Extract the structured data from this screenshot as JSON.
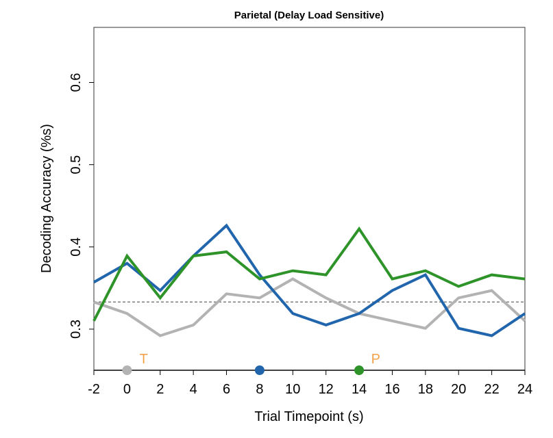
{
  "chart_data": {
    "type": "line",
    "title": "Parietal (Delay Load Sensitive)",
    "xlabel": "Trial Timepoint (s)",
    "ylabel": "Decoding Accuracy (%s)",
    "xlim": [
      -2,
      24
    ],
    "ylim": [
      0.25,
      0.667
    ],
    "x_ticks": [
      "-2",
      "0",
      "2",
      "4",
      "6",
      "8",
      "10",
      "12",
      "14",
      "16",
      "18",
      "20",
      "22",
      "24"
    ],
    "y_ticks": [
      "0.3",
      "0.4",
      "0.5",
      "0.6"
    ],
    "grid": false,
    "legend": "none",
    "chance_level": 0.333,
    "x": [
      -2,
      0,
      2,
      4,
      6,
      8,
      10,
      12,
      14,
      16,
      18,
      20,
      22,
      24
    ],
    "series": [
      {
        "color": "#B3B3B3",
        "values": [
          0.333,
          0.319,
          0.292,
          0.305,
          0.343,
          0.338,
          0.361,
          0.338,
          0.319,
          0.31,
          0.301,
          0.338,
          0.347,
          0.31
        ]
      },
      {
        "color": "#2166AC",
        "values": [
          0.357,
          0.38,
          0.347,
          0.389,
          0.426,
          0.366,
          0.319,
          0.305,
          0.319,
          0.347,
          0.366,
          0.301,
          0.292,
          0.319
        ]
      },
      {
        "color": "#2E9329",
        "values": [
          0.31,
          0.389,
          0.338,
          0.389,
          0.394,
          0.361,
          0.371,
          0.366,
          0.422,
          0.361,
          0.371,
          0.352,
          0.366,
          0.361
        ]
      }
    ],
    "event_markers": [
      {
        "x": 0,
        "color": "#B3B3B3"
      },
      {
        "x": 8,
        "color": "#2166AC"
      },
      {
        "x": 14,
        "color": "#2E9329"
      }
    ],
    "event_labels": [
      {
        "x": 1,
        "text": "T",
        "color": "#F5A34A"
      },
      {
        "x": 15,
        "text": "P",
        "color": "#F5A34A"
      }
    ]
  }
}
